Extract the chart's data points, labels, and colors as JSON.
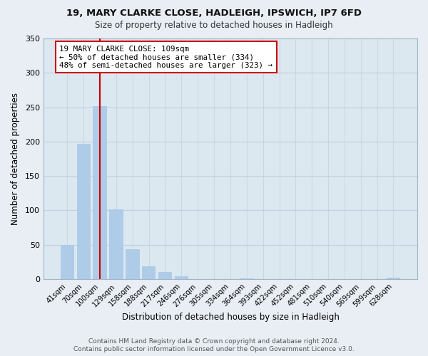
{
  "title_line1": "19, MARY CLARKE CLOSE, HADLEIGH, IPSWICH, IP7 6FD",
  "title_line2": "Size of property relative to detached houses in Hadleigh",
  "xlabel": "Distribution of detached houses by size in Hadleigh",
  "ylabel": "Number of detached properties",
  "bar_labels": [
    "41sqm",
    "70sqm",
    "100sqm",
    "129sqm",
    "158sqm",
    "188sqm",
    "217sqm",
    "246sqm",
    "276sqm",
    "305sqm",
    "334sqm",
    "364sqm",
    "393sqm",
    "422sqm",
    "452sqm",
    "481sqm",
    "510sqm",
    "540sqm",
    "569sqm",
    "599sqm",
    "628sqm"
  ],
  "bar_heights": [
    50,
    197,
    252,
    102,
    44,
    19,
    10,
    4,
    0,
    0,
    0,
    1,
    0,
    0,
    0,
    0,
    0,
    0,
    0,
    0,
    2
  ],
  "bar_color": "#aecce8",
  "vline_x": 2,
  "vline_color": "#cc0000",
  "annotation_text": "19 MARY CLARKE CLOSE: 109sqm\n← 50% of detached houses are smaller (334)\n48% of semi-detached houses are larger (323) →",
  "annotation_box_color": "#ffffff",
  "annotation_box_edge": "#cc0000",
  "ylim": [
    0,
    350
  ],
  "yticks": [
    0,
    50,
    100,
    150,
    200,
    250,
    300,
    350
  ],
  "footnote_line1": "Contains HM Land Registry data © Crown copyright and database right 2024.",
  "footnote_line2": "Contains public sector information licensed under the Open Government Licence v3.0.",
  "background_color": "#e8eef4",
  "plot_bg_color": "#dce8f0",
  "grid_color": "#c0d0de"
}
